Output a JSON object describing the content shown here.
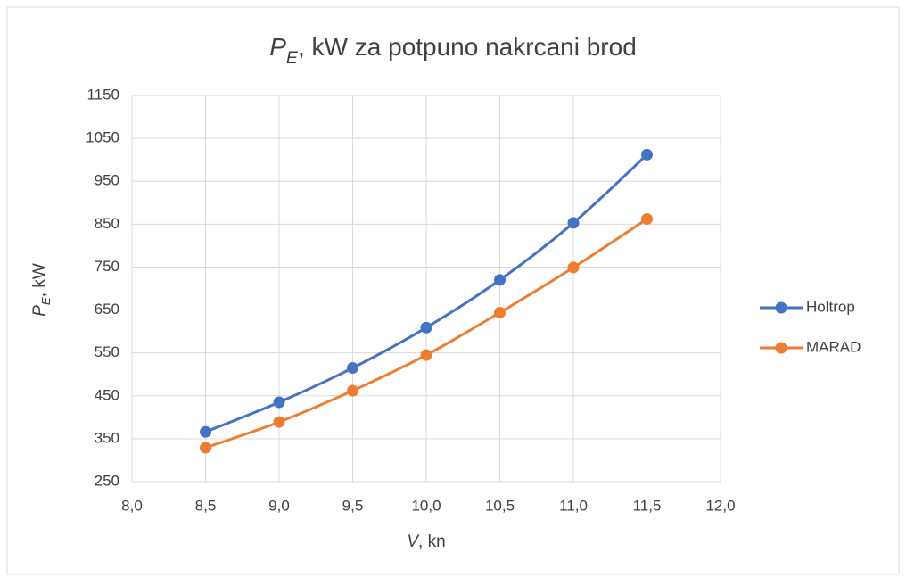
{
  "chart_data": {
    "type": "line",
    "title": "PE, kW za potpuno nakrcani brod",
    "x_label": "V, kn",
    "y_label": "PE, kW",
    "x": [
      8.5,
      9.0,
      9.5,
      10.0,
      10.5,
      11.0,
      11.5
    ],
    "series": [
      {
        "name": "Holtrop",
        "color": "#4472c4",
        "values": [
          366,
          435,
          515,
          609,
          720,
          853,
          1012
        ]
      },
      {
        "name": "MARAD",
        "color": "#ed7d31",
        "values": [
          329,
          389,
          462,
          545,
          644,
          749,
          862
        ]
      }
    ],
    "xlim": [
      8,
      12
    ],
    "xticks": [
      {
        "value": 8,
        "label": "8,0"
      },
      {
        "value": 8.5,
        "label": "8,5"
      },
      {
        "value": 9,
        "label": "9,0"
      },
      {
        "value": 9.5,
        "label": "9,5"
      },
      {
        "value": 10,
        "label": "10,0"
      },
      {
        "value": 10.5,
        "label": "10,5"
      },
      {
        "value": 11,
        "label": "11,0"
      },
      {
        "value": 11.5,
        "label": "11,5"
      },
      {
        "value": 12,
        "label": "12,0"
      }
    ],
    "ylim": [
      250,
      1150
    ],
    "yticks": [
      250,
      350,
      450,
      550,
      650,
      750,
      850,
      950,
      1050,
      1150
    ],
    "grid": true,
    "legend": "right",
    "smooth": true
  }
}
